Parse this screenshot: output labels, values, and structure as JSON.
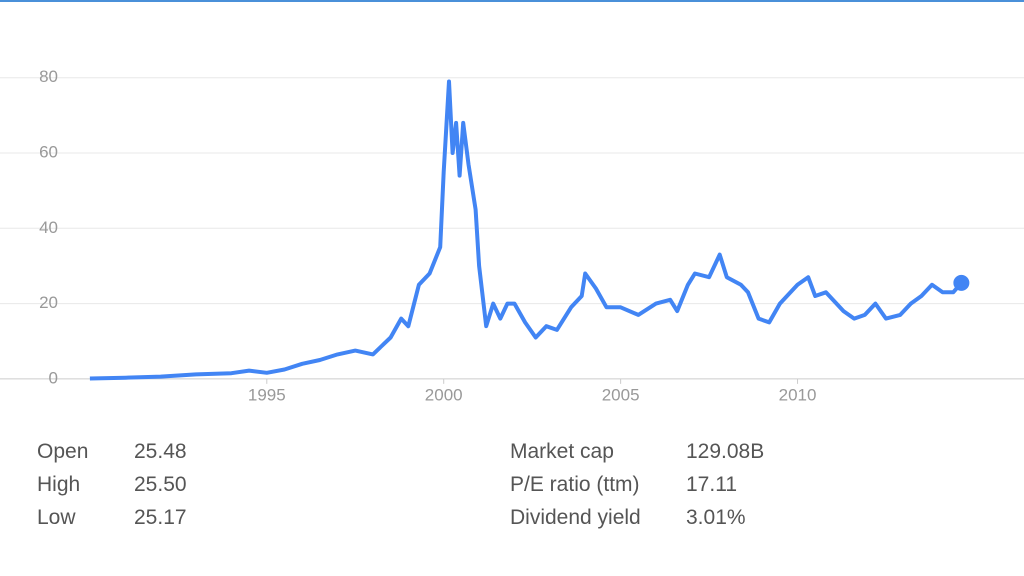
{
  "chart_data": {
    "type": "line",
    "x": [
      1990.0,
      1991.0,
      1992.0,
      1993.0,
      1994.0,
      1994.5,
      1995.0,
      1995.5,
      1996.0,
      1996.5,
      1997.0,
      1997.5,
      1998.0,
      1998.5,
      1998.8,
      1999.0,
      1999.3,
      1999.6,
      1999.9,
      2000.0,
      2000.15,
      2000.25,
      2000.35,
      2000.45,
      2000.55,
      2000.7,
      2000.9,
      2001.0,
      2001.2,
      2001.4,
      2001.6,
      2001.8,
      2002.0,
      2002.3,
      2002.6,
      2002.9,
      2003.2,
      2003.6,
      2003.9,
      2004.0,
      2004.3,
      2004.6,
      2005.0,
      2005.5,
      2006.0,
      2006.4,
      2006.6,
      2006.9,
      2007.1,
      2007.5,
      2007.8,
      2008.0,
      2008.4,
      2008.6,
      2008.9,
      2009.2,
      2009.5,
      2009.8,
      2010.0,
      2010.3,
      2010.5,
      2010.8,
      2011.0,
      2011.3,
      2011.6,
      2011.9,
      2012.2,
      2012.5,
      2012.9,
      2013.2,
      2013.5,
      2013.8,
      2014.1,
      2014.4,
      2014.63
    ],
    "series": [
      {
        "color": "#4285f4",
        "values": [
          0.1,
          0.3,
          0.6,
          1.2,
          1.5,
          2.2,
          1.6,
          2.5,
          4,
          5,
          6.5,
          7.5,
          6.5,
          11,
          16,
          14,
          25,
          28,
          35,
          55,
          79,
          60,
          68,
          54,
          68,
          57,
          45,
          30,
          14,
          20,
          16,
          20,
          20,
          15,
          11,
          14,
          13,
          19,
          22,
          28,
          24,
          19,
          19,
          17,
          20,
          21,
          18,
          25,
          28,
          27,
          33,
          27,
          25,
          23,
          16,
          15,
          20,
          23,
          25,
          27,
          22,
          23,
          21,
          18,
          16,
          17,
          20,
          16,
          17,
          20,
          22,
          25,
          23,
          23,
          25.5
        ]
      }
    ],
    "xlim": [
      1987.46,
      2016.4
    ],
    "xticks": [
      1995,
      2000,
      2005,
      2010
    ],
    "ylim": [
      -0.3,
      84.7
    ],
    "yticks": [
      0,
      20,
      40,
      60,
      80
    ],
    "grid": true
  },
  "stats": {
    "left": [
      [
        "Open",
        "25.48"
      ],
      [
        "High",
        "25.50"
      ],
      [
        "Low",
        "25.17"
      ]
    ],
    "right": [
      [
        "Market cap",
        "129.08B"
      ],
      [
        "P/E ratio (ttm)",
        "17.11"
      ],
      [
        "Dividend yield",
        "3.01%"
      ]
    ]
  }
}
